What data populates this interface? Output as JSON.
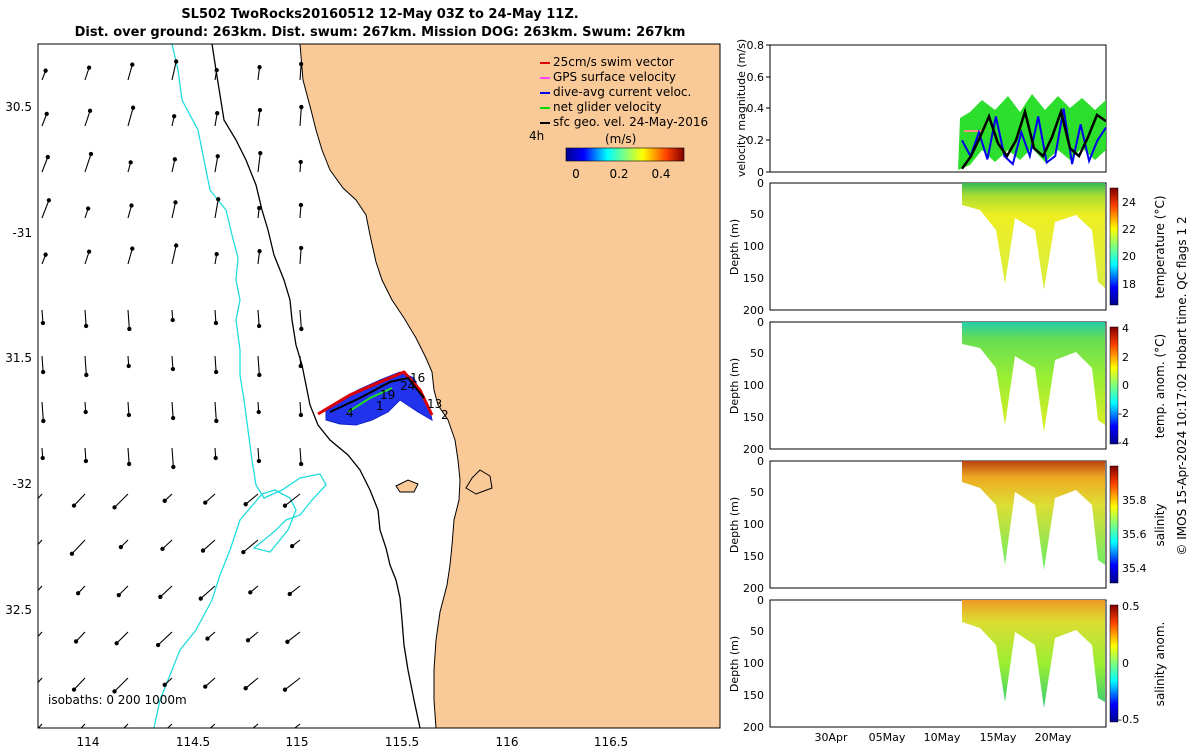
{
  "title": {
    "line1": "SL502 TwoRocks20160512 12-May 03Z to 24-May 11Z.",
    "line2": "Dist. over ground: 263km. Dist. swum: 267km. Mission DOG: 263km. Swum: 267km"
  },
  "map": {
    "lon_ticks": [
      "114",
      "114.5",
      "115",
      "115.5",
      "116",
      "116.5"
    ],
    "lat_ticks": [
      "30.5",
      "-31",
      "31.5",
      "-32",
      "32.5"
    ],
    "isobaths_label": "isobaths: 0   200  1000m",
    "time_label": "4h",
    "legend": [
      {
        "label": "25cm/s swim vector",
        "color": "#dd0000"
      },
      {
        "label": "GPS surface velocity",
        "color": "#ff44ff"
      },
      {
        "label": "dive-avg current veloc.",
        "color": "#0000ee"
      },
      {
        "label": "net glider velocity",
        "color": "#00dd00"
      },
      {
        "label": "sfc geo. vel. 24-May-2016",
        "color": "#000000"
      }
    ],
    "colorbar": {
      "unit": "(m/s)",
      "ticks": [
        "0",
        "0.2",
        "0.4"
      ]
    },
    "track_labels": [
      "16",
      "24",
      "13",
      "2",
      "1",
      "4",
      "19"
    ],
    "colors": {
      "land": "#f9c998",
      "ocean": "#ffffff",
      "isobath_0": "#000000",
      "isobath_1000": "#22dddd"
    }
  },
  "chart_data": [
    {
      "type": "line",
      "title": "",
      "ylabel": "velocity magnitude (m/s)",
      "ylim": [
        0,
        0.8
      ],
      "yticks": [
        "0",
        "0.2",
        "0.4",
        "0.6",
        "0.8"
      ],
      "series": [
        {
          "name": "net glider velocity",
          "color": "#22dd22",
          "values": [
            0.12,
            0.2,
            0.32,
            0.25,
            0.4,
            0.32,
            0.3,
            0.42,
            0.35,
            0.3,
            0.42,
            0.35,
            0.3,
            0.42,
            0.38,
            0.32,
            0.4,
            0.3
          ]
        },
        {
          "name": "dive-avg current veloc.",
          "color": "#0000ee",
          "values": [
            0.2,
            0.1,
            0.25,
            0.08,
            0.35,
            0.1,
            0.05,
            0.25,
            0.1,
            0.35,
            0.06,
            0.1,
            0.4,
            0.05,
            0.3,
            0.07,
            0.2,
            0.28
          ]
        },
        {
          "name": "sfc geo. vel.",
          "color": "#000000",
          "values": [
            0.02,
            0.1,
            0.22,
            0.35,
            0.18,
            0.1,
            0.2,
            0.38,
            0.15,
            0.1,
            0.22,
            0.38,
            0.15,
            0.1,
            0.22,
            0.36,
            0.32
          ]
        }
      ]
    },
    {
      "type": "heatmap",
      "ylabel": "Depth (m)",
      "yticks": [
        "0",
        "50",
        "100",
        "150",
        "200"
      ],
      "colorbar_label": "temperature (°C)",
      "colorbar_ticks": [
        "24",
        "22",
        "20",
        "18"
      ]
    },
    {
      "type": "heatmap",
      "ylabel": "Depth (m)",
      "yticks": [
        "0",
        "50",
        "100",
        "150",
        "200"
      ],
      "colorbar_label": "temp. anom. (°C)",
      "colorbar_ticks": [
        "4",
        "2",
        "0",
        "-2",
        "-4"
      ]
    },
    {
      "type": "heatmap",
      "ylabel": "Depth (m)",
      "yticks": [
        "0",
        "50",
        "100",
        "150",
        "200"
      ],
      "colorbar_label": "salinity",
      "colorbar_ticks": [
        "35.8",
        "35.6",
        "35.4"
      ]
    },
    {
      "type": "heatmap",
      "ylabel": "Depth (m)",
      "yticks": [
        "0",
        "50",
        "100",
        "150",
        "200"
      ],
      "colorbar_label": "salinity anom.",
      "colorbar_ticks": [
        "0.5",
        "0",
        "-0.5"
      ]
    }
  ],
  "time_axis": {
    "ticks": [
      "30Apr",
      "05May",
      "10May",
      "15May",
      "20May"
    ]
  },
  "side_caption": "© IMOS 15-Apr-2024 10:17:02 Hobart time. QC flags 1  2"
}
